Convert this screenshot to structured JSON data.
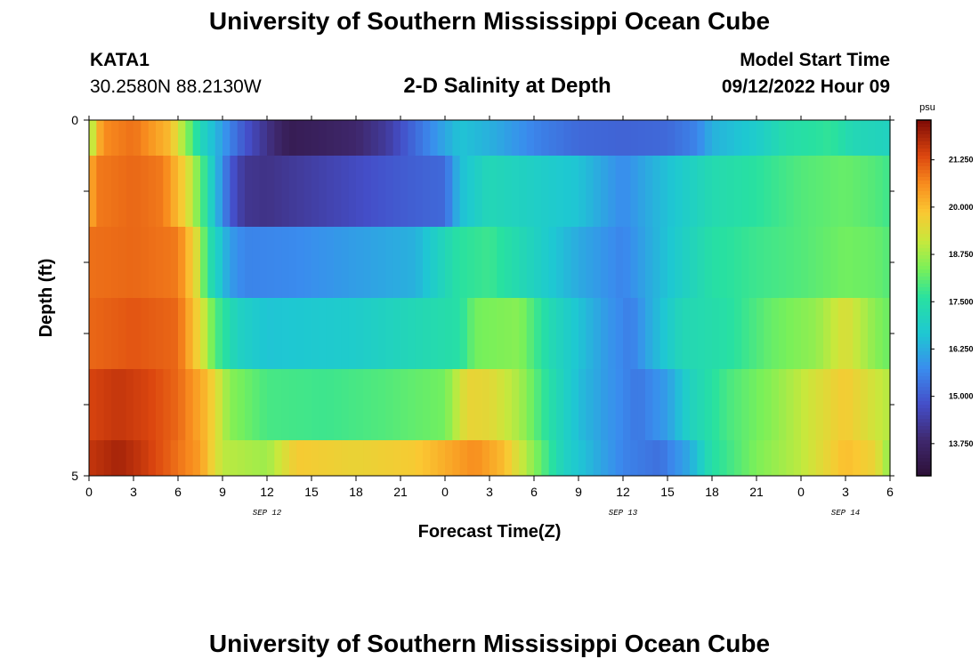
{
  "header": {
    "title": "University of Southern Mississippi Ocean Cube",
    "station": "KATA1",
    "coords": "30.2580N  88.2130W",
    "subtitle": "2-D Salinity at Depth",
    "model_start_label": "Model Start Time",
    "model_start_value": "09/12/2022 Hour 09"
  },
  "footer": {
    "title": "University of Southern Mississippi Ocean Cube"
  },
  "chart_data": {
    "type": "heatmap",
    "xlabel": "Forecast Time(Z)",
    "ylabel": "Depth (ft)",
    "x_tick_labels": [
      "0",
      "3",
      "6",
      "9",
      "12",
      "15",
      "18",
      "21",
      "0",
      "3",
      "6",
      "9",
      "12",
      "15",
      "18",
      "21",
      "0",
      "3",
      "6"
    ],
    "date_labels": [
      {
        "text": "SEP 12",
        "at_hours": 12
      },
      {
        "text": "SEP 13",
        "at_hours": 36
      },
      {
        "text": "SEP 14",
        "at_hours": 51
      }
    ],
    "x_range_hours": [
      0,
      54
    ],
    "y_range_ft": [
      0,
      5
    ],
    "y_tick_labels": [
      "0",
      "5"
    ],
    "colorbar": {
      "unit": "psu",
      "min": 12.9,
      "max": 22.3,
      "tick_values": [
        13.75,
        15.0,
        16.25,
        17.5,
        18.75,
        20.0,
        21.25
      ],
      "tick_labels": [
        "13.750",
        "15.000",
        "16.250",
        "17.500",
        "18.750",
        "20.000",
        "21.250"
      ]
    },
    "rows": [
      {
        "depth": "0-0.5",
        "keys": [
          [
            0,
            18.0
          ],
          [
            0.4,
            19.8
          ],
          [
            1,
            20.6
          ],
          [
            3,
            20.9
          ],
          [
            5.5,
            20.0
          ],
          [
            6.5,
            18.6
          ],
          [
            7.5,
            17.2
          ],
          [
            8.5,
            16.4
          ],
          [
            10,
            15.2
          ],
          [
            12,
            14.1
          ],
          [
            13.5,
            13.4
          ],
          [
            16,
            13.6
          ],
          [
            18,
            13.8
          ],
          [
            20,
            14.3
          ],
          [
            21.5,
            15.0
          ],
          [
            25,
            16.6
          ],
          [
            27,
            16.3
          ],
          [
            30,
            15.6
          ],
          [
            33,
            15.2
          ],
          [
            36,
            15.1
          ],
          [
            39,
            15.2
          ],
          [
            41,
            15.6
          ],
          [
            42,
            16.3
          ],
          [
            45,
            16.8
          ],
          [
            47,
            17.4
          ],
          [
            50,
            17.7
          ],
          [
            51.5,
            17.2
          ],
          [
            53,
            17.1
          ],
          [
            54,
            17.0
          ]
        ]
      },
      {
        "depth": "0.5-1.5",
        "keys": [
          [
            0,
            20.0
          ],
          [
            0.5,
            20.8
          ],
          [
            3,
            21.0
          ],
          [
            5,
            20.8
          ],
          [
            6.5,
            19.6
          ],
          [
            7.5,
            18.2
          ],
          [
            8.5,
            16.5
          ],
          [
            9.5,
            15.0
          ],
          [
            10.5,
            14.2
          ],
          [
            12,
            14.1
          ],
          [
            16,
            14.5
          ],
          [
            20,
            14.9
          ],
          [
            24,
            15.2
          ],
          [
            25,
            16.5
          ],
          [
            27,
            17.2
          ],
          [
            30,
            16.9
          ],
          [
            33,
            16.6
          ],
          [
            36,
            15.7
          ],
          [
            38,
            16.3
          ],
          [
            40,
            16.8
          ],
          [
            42,
            17.3
          ],
          [
            45,
            17.6
          ],
          [
            48,
            18.0
          ],
          [
            51,
            18.2
          ],
          [
            53,
            18.0
          ],
          [
            54,
            17.8
          ]
        ]
      },
      {
        "depth": "1.5-2.5",
        "keys": [
          [
            0,
            20.9
          ],
          [
            3,
            21.0
          ],
          [
            6,
            20.8
          ],
          [
            7.2,
            19.5
          ],
          [
            8,
            17.6
          ],
          [
            9.5,
            16.0
          ],
          [
            10.5,
            15.6
          ],
          [
            14,
            15.7
          ],
          [
            18,
            16.0
          ],
          [
            22,
            16.3
          ],
          [
            25,
            17.6
          ],
          [
            27,
            17.8
          ],
          [
            30,
            17.0
          ],
          [
            33,
            16.2
          ],
          [
            36,
            15.6
          ],
          [
            39,
            16.6
          ],
          [
            42,
            17.5
          ],
          [
            45,
            17.8
          ],
          [
            48,
            18.0
          ],
          [
            51,
            18.3
          ],
          [
            53,
            18.2
          ],
          [
            54,
            18.0
          ]
        ]
      },
      {
        "depth": "2.5-3.5",
        "keys": [
          [
            0,
            21.0
          ],
          [
            3,
            21.2
          ],
          [
            6,
            21.0
          ],
          [
            7.5,
            19.5
          ],
          [
            8.5,
            18.0
          ],
          [
            10,
            17.0
          ],
          [
            12,
            16.6
          ],
          [
            18,
            16.8
          ],
          [
            25,
            17.5
          ],
          [
            26,
            18.3
          ],
          [
            29,
            18.5
          ],
          [
            31,
            17.3
          ],
          [
            33,
            16.6
          ],
          [
            35,
            15.9
          ],
          [
            36.5,
            15.5
          ],
          [
            38,
            16.3
          ],
          [
            40,
            17.2
          ],
          [
            43,
            17.5
          ],
          [
            46,
            18.2
          ],
          [
            49,
            18.6
          ],
          [
            51,
            19.4
          ],
          [
            53,
            18.5
          ],
          [
            54,
            18.2
          ]
        ]
      },
      {
        "depth": "3.5-4.5",
        "keys": [
          [
            0,
            21.4
          ],
          [
            2,
            21.6
          ],
          [
            4,
            21.4
          ],
          [
            6,
            21.0
          ],
          [
            8,
            20.0
          ],
          [
            9.5,
            18.5
          ],
          [
            12,
            17.9
          ],
          [
            16,
            17.8
          ],
          [
            20,
            18.0
          ],
          [
            24,
            18.3
          ],
          [
            25.5,
            19.6
          ],
          [
            27,
            19.5
          ],
          [
            29,
            18.8
          ],
          [
            31,
            17.5
          ],
          [
            33,
            16.5
          ],
          [
            35,
            15.9
          ],
          [
            37,
            15.4
          ],
          [
            39,
            16.0
          ],
          [
            40.5,
            17.0
          ],
          [
            43,
            17.9
          ],
          [
            46,
            18.5
          ],
          [
            49,
            19.3
          ],
          [
            51,
            19.8
          ],
          [
            53,
            19.2
          ],
          [
            54,
            18.9
          ]
        ]
      },
      {
        "depth": "4.5-5",
        "keys": [
          [
            0,
            21.6
          ],
          [
            2,
            21.9
          ],
          [
            3.5,
            21.6
          ],
          [
            5,
            21.2
          ],
          [
            7.5,
            20.4
          ],
          [
            9,
            19.0
          ],
          [
            12,
            18.7
          ],
          [
            14,
            19.8
          ],
          [
            18,
            19.6
          ],
          [
            22,
            19.8
          ],
          [
            26,
            20.6
          ],
          [
            28,
            20.0
          ],
          [
            30,
            18.5
          ],
          [
            32,
            17.0
          ],
          [
            34,
            16.3
          ],
          [
            36,
            15.6
          ],
          [
            38.5,
            15.3
          ],
          [
            40.5,
            16.2
          ],
          [
            42,
            17.5
          ],
          [
            45,
            18.4
          ],
          [
            48,
            19.0
          ],
          [
            51,
            20.0
          ],
          [
            53,
            19.6
          ],
          [
            54,
            18.5
          ]
        ]
      }
    ]
  }
}
